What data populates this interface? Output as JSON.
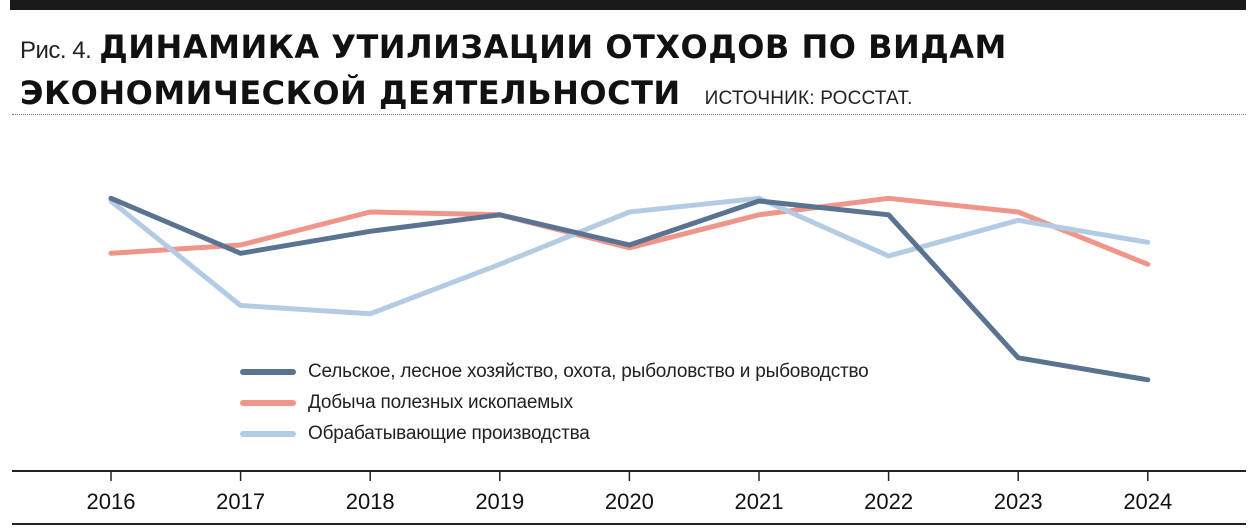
{
  "header": {
    "fig_label": "Рис. 4.",
    "title_line1": "ДИНАМИКА УТИЛИЗАЦИИ ОТХОДОВ ПО ВИДАМ",
    "title_line2": "ЭКОНОМИЧЕСКОЙ ДЕЯТЕЛЬНОСТИ",
    "source": "ИСТОЧНИК: РОССТАТ."
  },
  "chart_data": {
    "type": "line",
    "title": "ДИНАМИКА УТИЛИЗАЦИИ ОТХОДОВ ПО ВИДАМ ЭКОНОМИЧЕСКОЙ ДЕЯТЕЛЬНОСТИ",
    "xlabel": "",
    "ylabel": "",
    "categories": [
      "2016",
      "2017",
      "2018",
      "2019",
      "2020",
      "2021",
      "2022",
      "2023",
      "2024"
    ],
    "ylim": [
      0,
      100
    ],
    "grid": false,
    "y_axis_shown": false,
    "legend_position": "bottom-center",
    "series": [
      {
        "name": "Сельское, лесное хозяйство, охота, рыболовство и рыбоводство",
        "color": "#5a7390",
        "values": [
          77,
          57,
          65,
          71,
          60,
          76,
          71,
          19,
          11
        ]
      },
      {
        "name": "Добыча полезных ископаемых",
        "color": "#f0958a",
        "values": [
          57,
          60,
          72,
          71,
          59,
          71,
          77,
          72,
          53
        ]
      },
      {
        "name": "Обрабатывающие производства",
        "color": "#b4cbe4",
        "values": [
          76,
          38,
          35,
          53,
          72,
          77,
          56,
          69,
          61
        ]
      }
    ]
  }
}
